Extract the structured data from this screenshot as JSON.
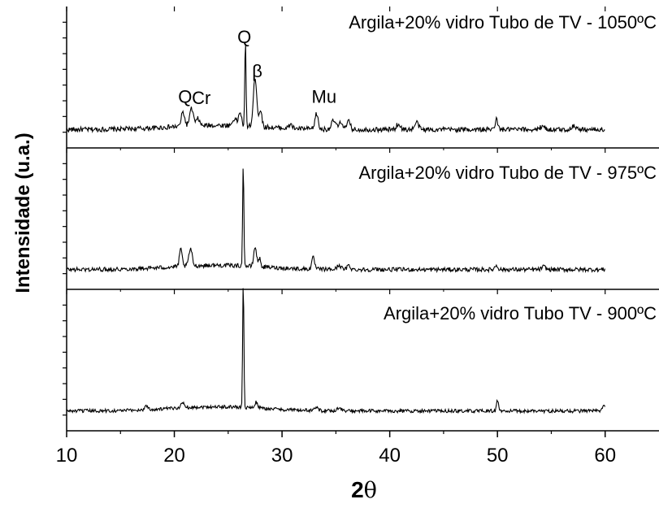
{
  "chart_data": {
    "type": "line",
    "xlabel_main": "2",
    "xlabel_symbol": "θ",
    "ylabel": "Intensidade (u.a.)",
    "xlim": [
      10,
      65
    ],
    "xticks": [
      10,
      20,
      30,
      40,
      50,
      60
    ],
    "grid": false,
    "legend": "none",
    "line_color": "#000000",
    "panels": [
      {
        "name": "Argila+20% vidro Tubo de TV - 1050ºC",
        "baseline": 0.13,
        "noise": 0.035,
        "peaks": [
          {
            "x": 20.8,
            "h": 0.1,
            "w": 0.22
          },
          {
            "x": 21.6,
            "h": 0.12,
            "w": 0.25
          },
          {
            "x": 22.2,
            "h": 0.05,
            "w": 0.2
          },
          {
            "x": 25.6,
            "h": 0.05,
            "w": 0.25
          },
          {
            "x": 26.1,
            "h": 0.1,
            "w": 0.18
          },
          {
            "x": 26.6,
            "h": 0.6,
            "w": 0.08
          },
          {
            "x": 27.5,
            "h": 0.35,
            "w": 0.22
          },
          {
            "x": 28.0,
            "h": 0.12,
            "w": 0.18
          },
          {
            "x": 30.8,
            "h": 0.03,
            "w": 0.2
          },
          {
            "x": 33.2,
            "h": 0.11,
            "w": 0.2
          },
          {
            "x": 34.8,
            "h": 0.06,
            "w": 0.3
          },
          {
            "x": 35.5,
            "h": 0.05,
            "w": 0.25
          },
          {
            "x": 36.2,
            "h": 0.06,
            "w": 0.2
          },
          {
            "x": 40.8,
            "h": 0.04,
            "w": 0.25
          },
          {
            "x": 42.5,
            "h": 0.05,
            "w": 0.25
          },
          {
            "x": 49.9,
            "h": 0.07,
            "w": 0.18
          },
          {
            "x": 54.2,
            "h": 0.03,
            "w": 0.25
          },
          {
            "x": 57.1,
            "h": 0.03,
            "w": 0.25
          }
        ],
        "labels": [
          {
            "text": "Q",
            "x": 21.0,
            "y": 0.32
          },
          {
            "text": "Cr",
            "x": 22.5,
            "y": 0.31
          },
          {
            "text": "Q",
            "x": 26.5,
            "y": 0.74
          },
          {
            "text": "β",
            "x": 27.7,
            "y": 0.5
          },
          {
            "text": "Mu",
            "x": 33.9,
            "y": 0.32
          }
        ]
      },
      {
        "name": "Argila+20% vidro Tubo de TV - 975ºC",
        "baseline": 0.14,
        "noise": 0.03,
        "peaks": [
          {
            "x": 20.6,
            "h": 0.12,
            "w": 0.18
          },
          {
            "x": 21.5,
            "h": 0.12,
            "w": 0.22
          },
          {
            "x": 26.4,
            "h": 0.72,
            "w": 0.08
          },
          {
            "x": 27.5,
            "h": 0.14,
            "w": 0.18
          },
          {
            "x": 27.9,
            "h": 0.06,
            "w": 0.15
          },
          {
            "x": 32.9,
            "h": 0.08,
            "w": 0.18
          },
          {
            "x": 35.3,
            "h": 0.03,
            "w": 0.25
          },
          {
            "x": 36.2,
            "h": 0.03,
            "w": 0.2
          },
          {
            "x": 49.9,
            "h": 0.03,
            "w": 0.2
          },
          {
            "x": 54.3,
            "h": 0.02,
            "w": 0.25
          }
        ],
        "labels": []
      },
      {
        "name": "Argila+20% vidro Tubo TV - 900ºC",
        "baseline": 0.14,
        "noise": 0.025,
        "peaks": [
          {
            "x": 17.4,
            "h": 0.03,
            "w": 0.2
          },
          {
            "x": 20.8,
            "h": 0.03,
            "w": 0.3
          },
          {
            "x": 26.4,
            "h": 0.9,
            "w": 0.08
          },
          {
            "x": 27.6,
            "h": 0.04,
            "w": 0.2
          },
          {
            "x": 33.2,
            "h": 0.03,
            "w": 0.2
          },
          {
            "x": 35.3,
            "h": 0.02,
            "w": 0.3
          },
          {
            "x": 50.0,
            "h": 0.08,
            "w": 0.12
          },
          {
            "x": 59.9,
            "h": 0.03,
            "w": 0.2
          }
        ],
        "labels": []
      }
    ]
  }
}
